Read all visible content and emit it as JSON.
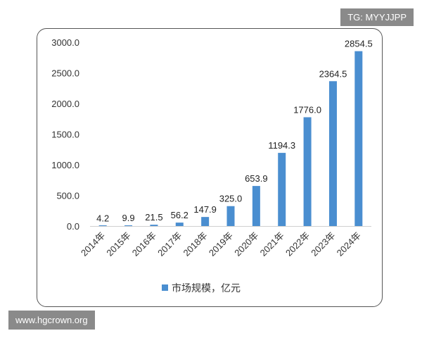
{
  "watermarks": {
    "top": "TG: MYYJJPP",
    "bottom": "www.hgcrown.org"
  },
  "colors": {
    "bar": "#4a8ed0",
    "frame": "#555555"
  },
  "chart_data": {
    "type": "bar",
    "categories": [
      "2014年",
      "2015年",
      "2016年",
      "2017年",
      "2018年",
      "2019年",
      "2020年",
      "2021年",
      "2022年",
      "2023年",
      "2024年"
    ],
    "series": [
      {
        "name": "市场规模，亿元",
        "values": [
          4.2,
          9.9,
          21.5,
          56.2,
          147.9,
          325.0,
          653.9,
          1194.3,
          1776.0,
          2364.5,
          2854.5
        ],
        "labels": [
          "4.2",
          "9.9",
          "21.5",
          "56.2",
          "147.9",
          "325.0",
          "653.9",
          "1194.3",
          "1776.0",
          "2364.5",
          "2854.5"
        ]
      }
    ],
    "yticks": [
      "0.0",
      "500.0",
      "1000.0",
      "1500.0",
      "2000.0",
      "2500.0",
      "3000.0"
    ],
    "ylim": [
      0,
      3000
    ],
    "grid": false,
    "legend_position": "bottom"
  }
}
